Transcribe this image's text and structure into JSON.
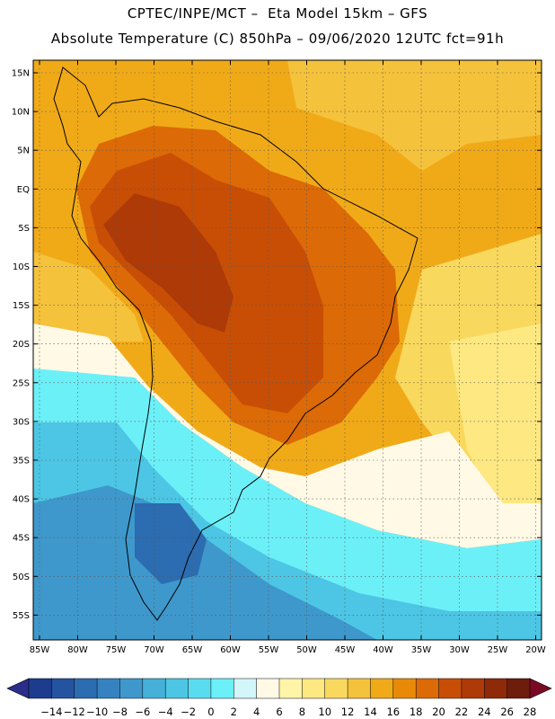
{
  "header": {
    "line1": "CPTEC/INPE/MCT –  Eta Model 15km – GFS",
    "line2": "Absolute Temperature (C) 850hPa – 09/06/2020 12UTC fct=91h"
  },
  "map": {
    "lat_labels": [
      "15N",
      "10N",
      "5N",
      "EQ",
      "5S",
      "10S",
      "15S",
      "20S",
      "25S",
      "30S",
      "35S",
      "40S",
      "45S",
      "50S",
      "55S"
    ],
    "lon_labels": [
      "85W",
      "80W",
      "75W",
      "70W",
      "65W",
      "60W",
      "55W",
      "50W",
      "45W",
      "40W",
      "35W",
      "30W",
      "25W",
      "20W"
    ]
  },
  "colorbar": {
    "labels": [
      "-14",
      "-12",
      "-10",
      "-8",
      "-6",
      "-4",
      "-2",
      "0",
      "2",
      "4",
      "6",
      "8",
      "10",
      "12",
      "14",
      "16",
      "18",
      "20",
      "22",
      "24",
      "26",
      "28"
    ],
    "colors": [
      "#1d3c8e",
      "#2454a0",
      "#2c6cb0",
      "#3682c0",
      "#3e98cc",
      "#45b0d8",
      "#4cc6e4",
      "#5adcf0",
      "#6cf0f8",
      "#d2f6fa",
      "#fff9e6",
      "#fff4a8",
      "#fde882",
      "#f9d85e",
      "#f5c23c",
      "#f0aa18",
      "#e88a08",
      "#dc6a06",
      "#c84e06",
      "#ae3a08",
      "#8e2a0a",
      "#6e1c0c"
    ],
    "left_arrow": "#2a2e8a",
    "right_arrow": "#7a0a24"
  }
}
